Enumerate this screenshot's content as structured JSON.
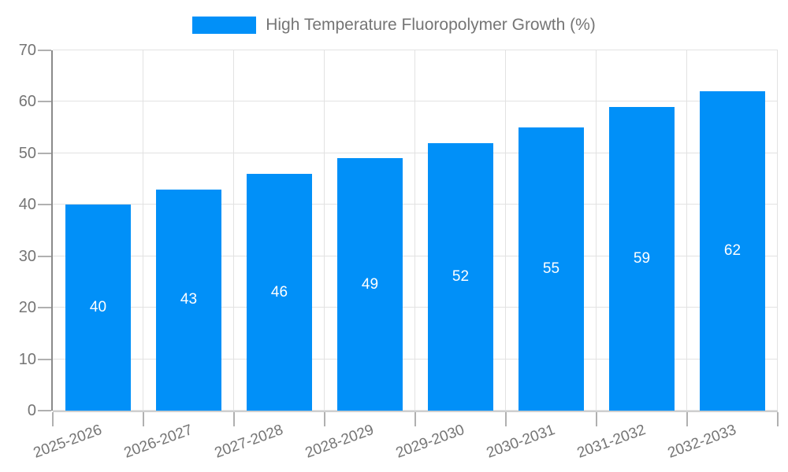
{
  "legend": {
    "label": "High Temperature Fluoropolymer Growth (%)"
  },
  "chart_data": {
    "type": "bar",
    "title": "High Temperature Fluoropolymer Growth (%)",
    "categories": [
      "2025-2026",
      "2026-2027",
      "2027-2028",
      "2028-2029",
      "2029-2030",
      "2030-2031",
      "2031-2032",
      "2032-2033"
    ],
    "values": [
      40,
      43,
      46,
      49,
      52,
      55,
      59,
      62
    ],
    "ylim": [
      0,
      70
    ],
    "yticks": [
      0,
      10,
      20,
      30,
      40,
      50,
      60,
      70
    ],
    "grid": true,
    "legend_position": "top-center",
    "value_labels": "inside-center",
    "x_label_rotation_deg": -20,
    "bar_width_ratio": 0.72,
    "colors": {
      "bar": "#0190f8",
      "value_label": "#ffffff",
      "axis_text": "#757575",
      "grid_line": "#e2e2e2",
      "y_axis_line": "#8a8a8a",
      "x_axis_line": "#cfcfcf",
      "tick": "#b0b0b0",
      "background": "#ffffff"
    }
  }
}
